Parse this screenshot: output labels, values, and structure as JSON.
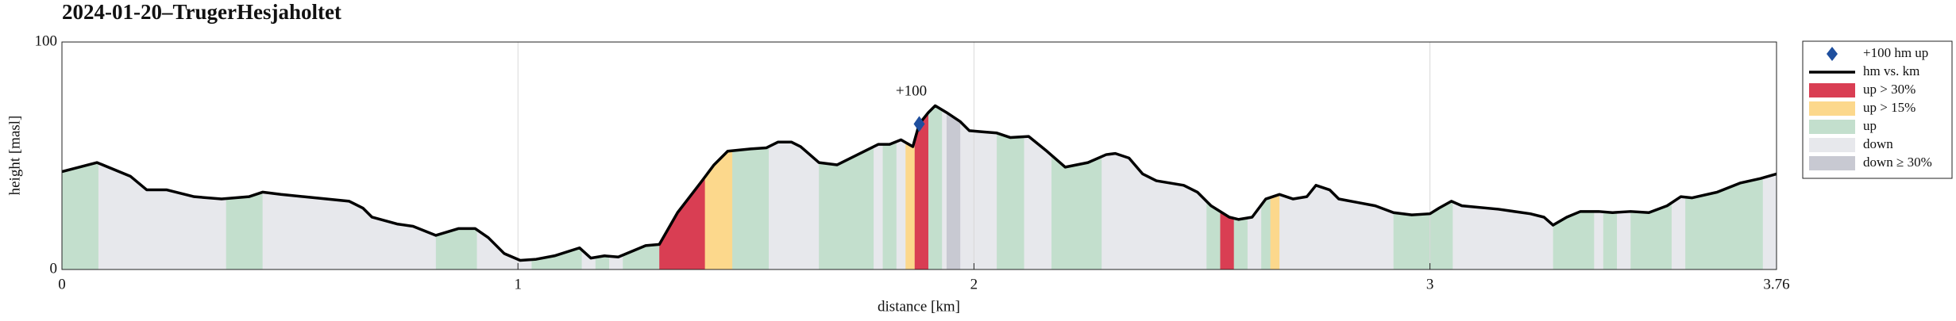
{
  "chart_data": {
    "type": "area",
    "title": "2024-01-20–TrugerHesjaholtet",
    "xlabel": "distance [km]",
    "ylabel": "height [masl]",
    "xlim": [
      0,
      3.76
    ],
    "ylim": [
      0,
      100
    ],
    "xticks": [
      0,
      1,
      2,
      3,
      3.76
    ],
    "yticks": [
      0,
      100
    ],
    "grid": true,
    "legend": "outside right",
    "x": [
      0,
      0.077,
      0.15,
      0.186,
      0.23,
      0.29,
      0.35,
      0.41,
      0.44,
      0.48,
      0.53,
      0.58,
      0.63,
      0.66,
      0.68,
      0.735,
      0.77,
      0.82,
      0.87,
      0.906,
      0.935,
      0.97,
      1.005,
      1.04,
      1.08,
      1.135,
      1.16,
      1.19,
      1.22,
      1.28,
      1.31,
      1.35,
      1.4,
      1.43,
      1.46,
      1.51,
      1.545,
      1.57,
      1.6,
      1.62,
      1.66,
      1.7,
      1.755,
      1.79,
      1.815,
      1.84,
      1.866,
      1.88,
      1.9,
      1.915,
      1.94,
      1.97,
      1.99,
      2.02,
      2.05,
      2.08,
      2.12,
      2.16,
      2.2,
      2.25,
      2.29,
      2.31,
      2.34,
      2.37,
      2.4,
      2.46,
      2.49,
      2.52,
      2.56,
      2.58,
      2.61,
      2.64,
      2.67,
      2.7,
      2.73,
      2.75,
      2.78,
      2.8,
      2.84,
      2.88,
      2.92,
      2.96,
      3.0,
      3.02,
      3.047,
      3.07,
      3.15,
      3.22,
      3.25,
      3.27,
      3.3,
      3.33,
      3.37,
      3.4,
      3.44,
      3.48,
      3.52,
      3.55,
      3.575,
      3.63,
      3.68,
      3.725,
      3.76
    ],
    "markers": {
      "name": "+100 hm up",
      "color": "#1f4f9e",
      "x": [
        1.88
      ],
      "values": [
        64
      ],
      "labels": [
        "+100"
      ]
    },
    "series": [
      {
        "name": "hm vs. km",
        "color": "#000000",
        "values": [
          43,
          47,
          41,
          35,
          35,
          32,
          31,
          32,
          34,
          33,
          32,
          31,
          30,
          27,
          23,
          20,
          19,
          15,
          18,
          18,
          14,
          7,
          4,
          4.5,
          6,
          9.5,
          5,
          6,
          5.5,
          10.5,
          11,
          25,
          38,
          46,
          52,
          53,
          53.5,
          56,
          56,
          54,
          47,
          46,
          51.5,
          55,
          55,
          57,
          54,
          64,
          69,
          72,
          69,
          65,
          61,
          60.5,
          60,
          58,
          58.5,
          52,
          45,
          47,
          50.5,
          51,
          49,
          42,
          39,
          37,
          34,
          28,
          23,
          22,
          23,
          31,
          33,
          31,
          32,
          37,
          35,
          31,
          29.5,
          28,
          25,
          24,
          24.5,
          27,
          30,
          28,
          26.5,
          24.5,
          23,
          19.5,
          23,
          25.5,
          25.5,
          25,
          25.5,
          25,
          28,
          32,
          31.5,
          34,
          38,
          40,
          42
        ]
      }
    ],
    "classes": [
      {
        "name": "up > 30%",
        "color": "#d93e53"
      },
      {
        "name": "up > 15%",
        "color": "#fcd88c"
      },
      {
        "name": "up",
        "color": "#c3dfcd"
      },
      {
        "name": "down",
        "color": "#e7e8ec"
      },
      {
        "name": "down ≥ 30%",
        "color": "#c8c9d2"
      }
    ],
    "bands": {
      "start": [
        0,
        0.08,
        0.36,
        0.44,
        0.82,
        0.91,
        1.03,
        1.14,
        1.17,
        1.2,
        1.23,
        1.31,
        1.41,
        1.47,
        1.55,
        1.66,
        1.78,
        1.8,
        1.83,
        1.85,
        1.87,
        1.9,
        1.93,
        1.94,
        1.97,
        2.05,
        2.11,
        2.17,
        2.28,
        2.51,
        2.54,
        2.57,
        2.6,
        2.63,
        2.65,
        2.67,
        2.92,
        3.05,
        3.27,
        3.36,
        3.38,
        3.41,
        3.44,
        3.53,
        3.56,
        3.73
      ],
      "end": [
        0.08,
        0.36,
        0.44,
        0.82,
        0.91,
        1.03,
        1.14,
        1.17,
        1.2,
        1.23,
        1.31,
        1.41,
        1.47,
        1.55,
        1.66,
        1.78,
        1.8,
        1.83,
        1.85,
        1.87,
        1.9,
        1.93,
        1.94,
        1.97,
        2.05,
        2.11,
        2.17,
        2.28,
        2.51,
        2.54,
        2.57,
        2.6,
        2.63,
        2.65,
        2.67,
        2.92,
        3.05,
        3.27,
        3.36,
        3.38,
        3.41,
        3.44,
        3.53,
        3.56,
        3.73,
        3.76
      ],
      "class": [
        2,
        3,
        2,
        3,
        2,
        3,
        2,
        3,
        2,
        3,
        2,
        0,
        1,
        2,
        3,
        2,
        3,
        2,
        3,
        1,
        0,
        2,
        3,
        4,
        3,
        2,
        3,
        2,
        3,
        2,
        0,
        2,
        3,
        2,
        1,
        3,
        2,
        3,
        2,
        3,
        2,
        3,
        2,
        3,
        2,
        3
      ]
    }
  }
}
